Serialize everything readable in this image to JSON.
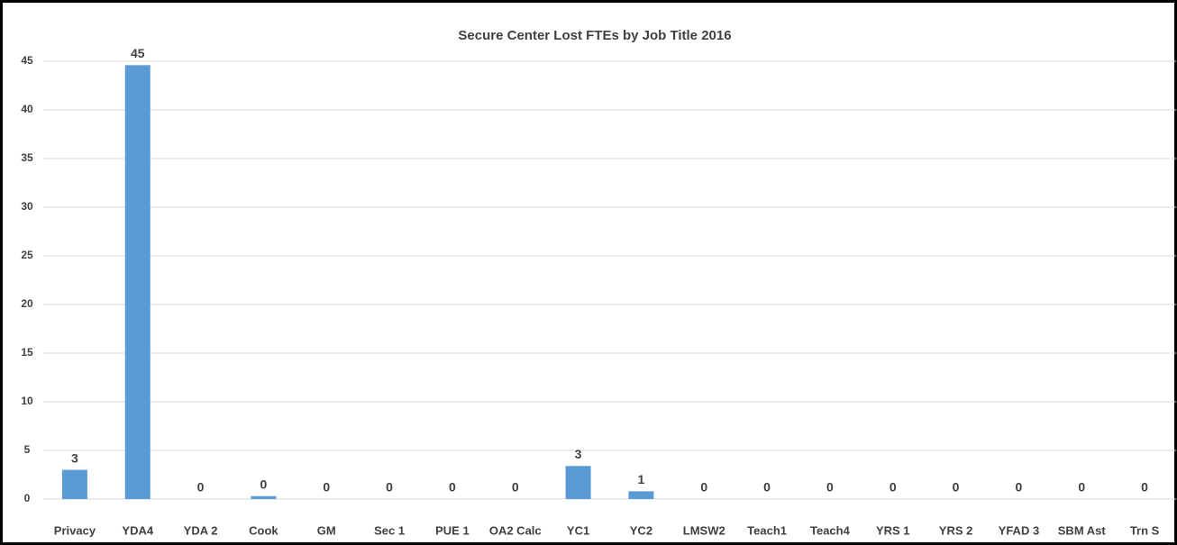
{
  "chart_data": {
    "type": "bar",
    "title": "Secure Center Lost FTEs by Job Title 2016",
    "categories": [
      "Privacy",
      "YDA4",
      "YDA 2",
      "Cook",
      "GM",
      "Sec 1",
      "PUE 1",
      "OA2 Calc",
      "YC1",
      "YC2",
      "LMSW2",
      "Teach1",
      "Teach4",
      "YRS 1",
      "YRS 2",
      "YFAD 3",
      "SBM Ast",
      "Trn S"
    ],
    "values": [
      3,
      44.6,
      0,
      0.3,
      0,
      0,
      0,
      0,
      3.4,
      0.8,
      0,
      0,
      0,
      0,
      0,
      0,
      0,
      0
    ],
    "value_labels": [
      "3",
      "45",
      "0",
      "0",
      "0",
      "0",
      "0",
      "0",
      "3",
      "1",
      "0",
      "0",
      "0",
      "0",
      "0",
      "0",
      "0",
      "0"
    ],
    "color": "#5b9bd5",
    "ylim": [
      0,
      45
    ],
    "yticks": [
      0,
      5,
      10,
      15,
      20,
      25,
      30,
      35,
      40,
      45
    ],
    "grid": true
  }
}
